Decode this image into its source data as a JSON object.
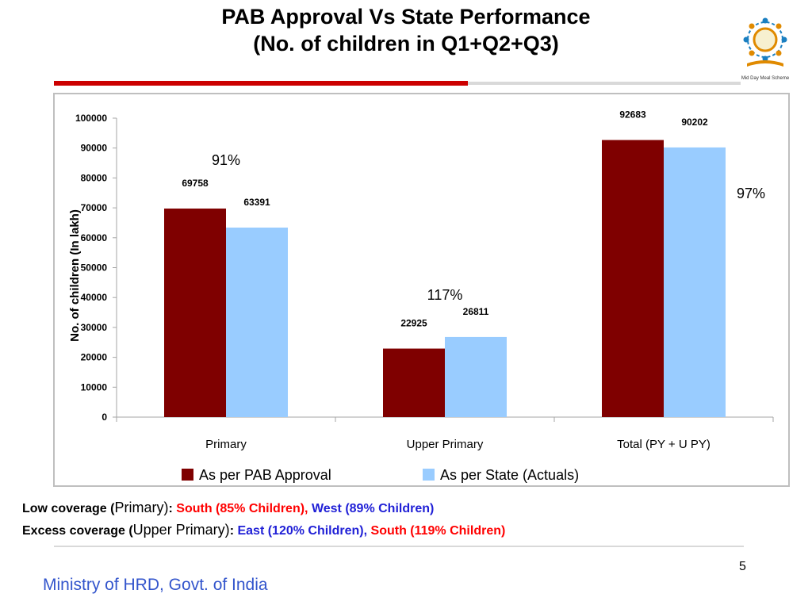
{
  "slide": {
    "title_line1": "PAB Approval  Vs State Performance",
    "title_line2": "(No. of children in Q1+Q2+Q3)",
    "page_number": "5",
    "footer": "Ministry of HRD, Govt. of India",
    "logo_caption": "Mid Day Meal Scheme"
  },
  "notes": {
    "low": {
      "label": "Low coverage (",
      "category": "Primary)",
      "colon": ": ",
      "item1": "South (85% Children),",
      "item2": " West (89% Children)"
    },
    "excess": {
      "label": "Excess coverage (",
      "category": "Upper Primary)",
      "colon": ": ",
      "item1": "East (120% Children),",
      "item2": " South (119% Children)"
    }
  },
  "colors": {
    "pab": "#7f0000",
    "state": "#99ccff",
    "title_red_rule": "#cc0000",
    "footer_blue": "#3355cc"
  },
  "chart_data": {
    "type": "bar",
    "ylabel": "No. of children (In lakh)",
    "xlabel": "",
    "ylim": [
      0,
      100000
    ],
    "yticks": [
      "0",
      "10000",
      "20000",
      "30000",
      "40000",
      "50000",
      "60000",
      "70000",
      "80000",
      "90000",
      "100000"
    ],
    "categories": [
      "Primary",
      "Upper Primary",
      "Total (PY + U PY)"
    ],
    "series": [
      {
        "name": "As per PAB Approval",
        "values": [
          69758,
          22925,
          92683
        ],
        "labels": [
          "69758",
          "22925",
          "92683"
        ]
      },
      {
        "name": "As per State (Actuals)",
        "values": [
          63391,
          26811,
          90202
        ],
        "labels": [
          "63391",
          "26811",
          "90202"
        ]
      }
    ],
    "annotations": [
      "91%",
      "117%",
      "97%"
    ],
    "legend_position": "bottom",
    "grid": false
  }
}
